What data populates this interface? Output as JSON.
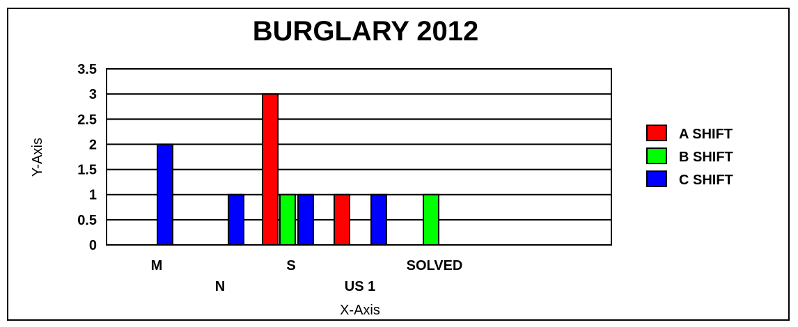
{
  "chart_data": {
    "type": "bar",
    "title": "BURGLARY 2012",
    "xlabel": "X-Axis",
    "ylabel": "Y-Axis",
    "ylim": [
      0,
      3.5
    ],
    "yticks": [
      "0",
      "0.5",
      "1",
      "1.5",
      "2",
      "2.5",
      "3",
      "3.5"
    ],
    "grid": true,
    "legend_position": "right",
    "categories": [
      "M",
      "N",
      "S",
      "US 1",
      "SOLVED"
    ],
    "series": [
      {
        "name": "A SHIFT",
        "color": "#ff0000",
        "values": [
          0,
          0,
          3,
          1,
          0
        ]
      },
      {
        "name": "B SHIFT",
        "color": "#00ff00",
        "values": [
          0,
          0,
          1,
          0,
          1
        ]
      },
      {
        "name": "C SHIFT",
        "color": "#0000ff",
        "values": [
          2,
          1,
          1,
          1,
          0
        ]
      }
    ]
  }
}
